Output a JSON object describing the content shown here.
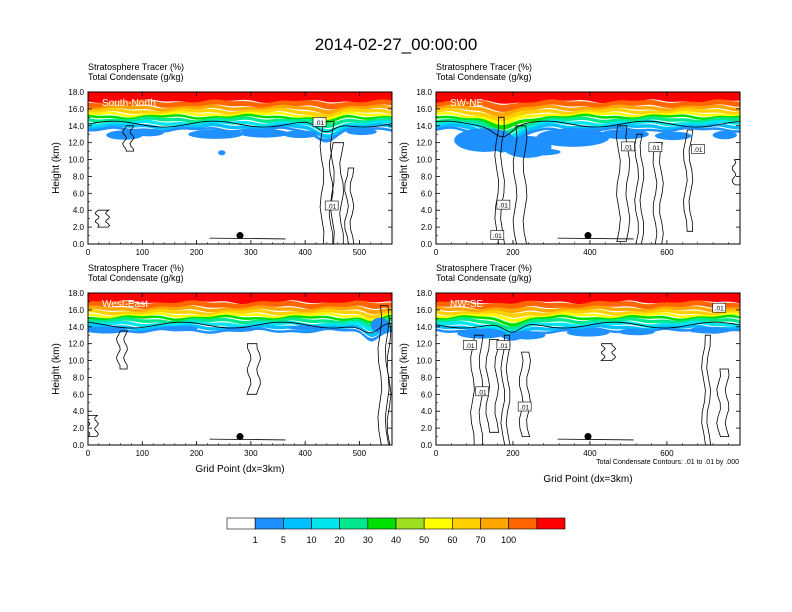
{
  "title": "2014-02-27_00:00:00",
  "field_labels": {
    "tracer": "Stratosphere Tracer",
    "tracer_units": "(%)",
    "condensate": "Total Condensate",
    "condensate_units": "(g/kg)"
  },
  "y_axis_label": "Height (km)",
  "x_axis_label": "Grid Point (dx=3km)",
  "contour_note": "Total Condensate Contours: .01 to .01 by .000",
  "contour_label": ".01",
  "colorbar": {
    "colors": [
      "#ffffff",
      "#1e90ff",
      "#00bfff",
      "#00e5ee",
      "#00e88c",
      "#00e000",
      "#9ee01e",
      "#ffff00",
      "#ffd000",
      "#ffa500",
      "#ff6600",
      "#ff0000"
    ],
    "labels": [
      "1",
      "5",
      "10",
      "20",
      "30",
      "40",
      "50",
      "60",
      "70",
      "100"
    ]
  },
  "chart_data": [
    {
      "type": "heatmap",
      "name": "South-North",
      "xlim": [
        0,
        560
      ],
      "ylim": [
        0,
        18
      ],
      "xticks": [
        0,
        100,
        200,
        300,
        400,
        500
      ],
      "yticks": [
        "0.0",
        "2.0",
        "4.0",
        "6.0",
        "8.0",
        "10.0",
        "12.0",
        "14.0",
        "16.0",
        "18.0"
      ],
      "marker_x": 280,
      "marker_y_km": 1.0,
      "show_x_title": false,
      "show_note": false
    },
    {
      "type": "heatmap",
      "name": "SW-NE",
      "xlim": [
        0,
        790
      ],
      "ylim": [
        0,
        18
      ],
      "xticks": [
        0,
        200,
        400,
        600
      ],
      "yticks": [
        "0.0",
        "2.0",
        "4.0",
        "6.0",
        "8.0",
        "10.0",
        "12.0",
        "14.0",
        "16.0",
        "18.0"
      ],
      "marker_x": 395,
      "marker_y_km": 1.0,
      "show_x_title": false,
      "show_note": false
    },
    {
      "type": "heatmap",
      "name": "West-East",
      "xlim": [
        0,
        560
      ],
      "ylim": [
        0,
        18
      ],
      "xticks": [
        0,
        100,
        200,
        300,
        400,
        500
      ],
      "yticks": [
        "0.0",
        "2.0",
        "4.0",
        "6.0",
        "8.0",
        "10.0",
        "12.0",
        "14.0",
        "16.0",
        "18.0"
      ],
      "marker_x": 280,
      "marker_y_km": 1.0,
      "show_x_title": true,
      "show_note": false
    },
    {
      "type": "heatmap",
      "name": "NW-SE",
      "xlim": [
        0,
        790
      ],
      "ylim": [
        0,
        18
      ],
      "xticks": [
        0,
        200,
        400,
        600
      ],
      "yticks": [
        "0.0",
        "2.0",
        "4.0",
        "6.0",
        "8.0",
        "10.0",
        "12.0",
        "14.0",
        "16.0",
        "18.0"
      ],
      "marker_x": 395,
      "marker_y_km": 1.0,
      "show_x_title": true,
      "show_note": true
    }
  ]
}
